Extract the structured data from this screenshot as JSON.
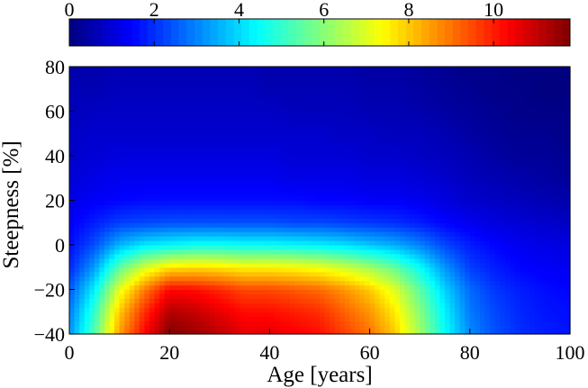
{
  "chart_data": {
    "type": "heatmap",
    "title": "",
    "xlabel": "Age [years]",
    "ylabel": "Steepness [%]",
    "x_ticks": [
      0,
      20,
      40,
      60,
      80,
      100
    ],
    "y_ticks": [
      -40,
      -20,
      0,
      20,
      40,
      60,
      80
    ],
    "xlim": [
      0,
      100
    ],
    "ylim": [
      -40,
      80
    ],
    "colorbar": {
      "position": "top",
      "colormap": "jet",
      "ticks": [
        0,
        2,
        4,
        6,
        8,
        10
      ],
      "range": [
        0,
        11.8
      ]
    },
    "grid": false,
    "x": [
      0,
      5,
      10,
      15,
      20,
      25,
      30,
      35,
      40,
      45,
      50,
      55,
      60,
      65,
      70,
      75,
      80,
      85,
      90,
      95,
      100
    ],
    "y": [
      -40,
      -30,
      -20,
      -10,
      0,
      10,
      20,
      30,
      40,
      50,
      60,
      70,
      80
    ],
    "z": [
      [
        3.2,
        5.4,
        8.5,
        10.3,
        11.8,
        11.5,
        11.1,
        10.6,
        10.6,
        10.4,
        10.2,
        9.6,
        9.0,
        8.0,
        6.3,
        4.5,
        3.1,
        2.4,
        2.0,
        1.8,
        1.7
      ],
      [
        2.9,
        5.0,
        8.0,
        9.8,
        11.2,
        11.0,
        10.6,
        10.2,
        10.2,
        10.0,
        9.8,
        9.2,
        8.6,
        7.6,
        6.0,
        4.3,
        2.9,
        2.3,
        1.9,
        1.7,
        1.6
      ],
      [
        2.5,
        4.3,
        7.1,
        8.9,
        10.3,
        10.2,
        9.9,
        9.5,
        9.5,
        9.3,
        9.1,
        8.6,
        8.0,
        7.0,
        5.5,
        3.9,
        2.7,
        2.1,
        1.8,
        1.6,
        1.5
      ],
      [
        1.9,
        3.3,
        5.5,
        6.9,
        7.7,
        7.8,
        7.7,
        7.5,
        7.5,
        7.4,
        7.2,
        6.8,
        6.3,
        5.6,
        4.5,
        3.2,
        2.2,
        1.8,
        1.5,
        1.4,
        1.3
      ],
      [
        1.6,
        2.4,
        3.6,
        4.2,
        4.4,
        4.6,
        4.6,
        4.5,
        4.5,
        4.4,
        4.3,
        4.1,
        3.8,
        3.5,
        3.0,
        2.3,
        1.8,
        1.5,
        1.3,
        1.2,
        1.1
      ],
      [
        1.4,
        1.8,
        2.2,
        2.3,
        2.4,
        2.4,
        2.4,
        2.4,
        2.4,
        2.3,
        2.3,
        2.2,
        2.1,
        2.0,
        1.8,
        1.5,
        1.3,
        1.1,
        1.0,
        0.9,
        0.8
      ],
      [
        1.2,
        1.4,
        1.5,
        1.6,
        1.6,
        1.6,
        1.6,
        1.6,
        1.6,
        1.6,
        1.5,
        1.5,
        1.4,
        1.4,
        1.3,
        1.1,
        0.9,
        0.8,
        0.7,
        0.6,
        0.5
      ],
      [
        1.0,
        1.2,
        1.3,
        1.3,
        1.3,
        1.3,
        1.3,
        1.3,
        1.3,
        1.2,
        1.2,
        1.2,
        1.1,
        1.1,
        1.0,
        0.9,
        0.7,
        0.6,
        0.5,
        0.4,
        0.3
      ],
      [
        0.9,
        1.0,
        1.1,
        1.1,
        1.1,
        1.1,
        1.1,
        1.1,
        1.1,
        1.0,
        1.0,
        1.0,
        0.9,
        0.9,
        0.8,
        0.7,
        0.6,
        0.4,
        0.3,
        0.3,
        0.2
      ],
      [
        0.8,
        0.9,
        0.9,
        0.9,
        0.9,
        0.9,
        0.9,
        0.9,
        0.9,
        0.9,
        0.9,
        0.8,
        0.8,
        0.7,
        0.7,
        0.6,
        0.4,
        0.3,
        0.2,
        0.2,
        0.1
      ],
      [
        0.7,
        0.8,
        0.8,
        0.8,
        0.8,
        0.8,
        0.8,
        0.8,
        0.8,
        0.7,
        0.7,
        0.7,
        0.6,
        0.6,
        0.5,
        0.4,
        0.3,
        0.2,
        0.1,
        0.1,
        0.1
      ],
      [
        0.6,
        0.6,
        0.7,
        0.7,
        0.7,
        0.7,
        0.7,
        0.7,
        0.6,
        0.6,
        0.6,
        0.6,
        0.5,
        0.5,
        0.4,
        0.3,
        0.2,
        0.1,
        0.1,
        0.0,
        0.0
      ],
      [
        0.5,
        0.5,
        0.6,
        0.6,
        0.6,
        0.6,
        0.6,
        0.6,
        0.5,
        0.5,
        0.5,
        0.5,
        0.4,
        0.4,
        0.3,
        0.2,
        0.1,
        0.1,
        0.0,
        0.0,
        0.0
      ]
    ]
  }
}
